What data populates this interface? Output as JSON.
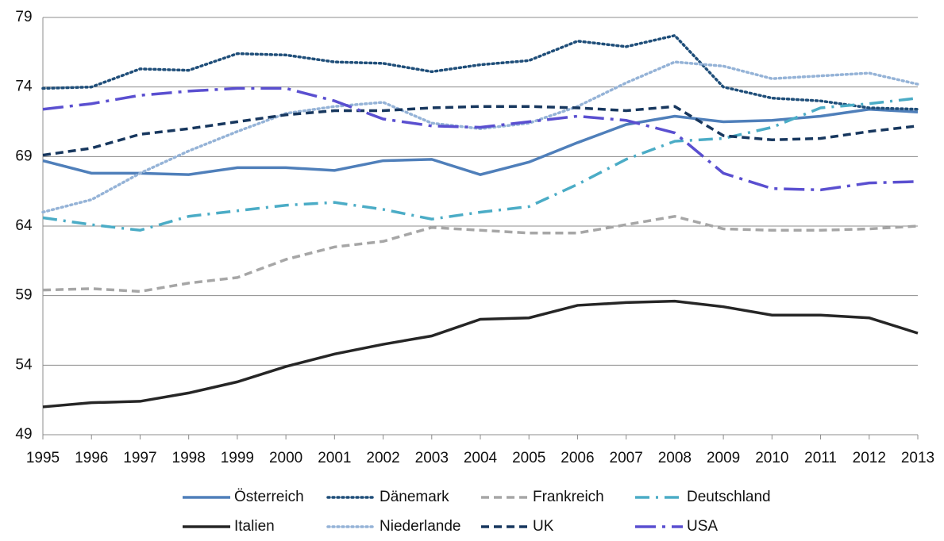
{
  "chart_data": {
    "type": "line",
    "x": [
      1995,
      1996,
      1997,
      1998,
      1999,
      2000,
      2001,
      2002,
      2003,
      2004,
      2005,
      2006,
      2007,
      2008,
      2009,
      2010,
      2011,
      2012,
      2013
    ],
    "xlim": [
      1995,
      2013
    ],
    "xticks": [
      1995,
      1996,
      1997,
      1998,
      1999,
      2000,
      2001,
      2002,
      2003,
      2004,
      2005,
      2006,
      2007,
      2008,
      2009,
      2010,
      2011,
      2012,
      2013
    ],
    "ylim": [
      49,
      79
    ],
    "yticks": [
      49,
      54,
      59,
      64,
      69,
      74,
      79
    ],
    "grid": true,
    "legend": "bottom",
    "series": [
      {
        "name": "Österreich",
        "color": "#4f7fba",
        "style": "solid",
        "values": [
          68.7,
          67.8,
          67.8,
          67.7,
          68.2,
          68.2,
          68.0,
          68.7,
          68.8,
          67.7,
          68.6,
          70.0,
          71.3,
          71.9,
          71.5,
          71.6,
          71.9,
          72.4,
          72.2
        ]
      },
      {
        "name": "Dänemark",
        "color": "#1f4e79",
        "style": "dotted",
        "values": [
          73.9,
          74.0,
          75.3,
          75.2,
          76.4,
          76.3,
          75.8,
          75.7,
          75.1,
          75.6,
          75.9,
          77.3,
          76.9,
          77.7,
          74.0,
          73.2,
          73.0,
          72.5,
          72.4
        ]
      },
      {
        "name": "Frankreich",
        "color": "#a6a6a6",
        "style": "dashed",
        "values": [
          59.4,
          59.5,
          59.3,
          59.9,
          60.3,
          61.6,
          62.5,
          62.9,
          63.9,
          63.7,
          63.5,
          63.5,
          64.1,
          64.7,
          63.8,
          63.7,
          63.7,
          63.8,
          64.0
        ]
      },
      {
        "name": "Deutschland",
        "color": "#4bacc6",
        "style": "dashdot",
        "values": [
          64.6,
          64.1,
          63.7,
          64.7,
          65.1,
          65.5,
          65.7,
          65.2,
          64.5,
          65.0,
          65.4,
          67.0,
          68.8,
          70.1,
          70.3,
          71.1,
          72.5,
          72.8,
          73.2
        ]
      },
      {
        "name": "Italien",
        "color": "#262626",
        "style": "solid",
        "values": [
          51.0,
          51.3,
          51.4,
          52.0,
          52.8,
          53.9,
          54.8,
          55.5,
          56.1,
          57.3,
          57.4,
          58.3,
          58.5,
          58.6,
          58.2,
          57.6,
          57.6,
          57.4,
          56.3
        ]
      },
      {
        "name": "Niederlande",
        "color": "#95b3d7",
        "style": "dotted",
        "values": [
          65.0,
          65.9,
          67.8,
          69.4,
          70.8,
          72.1,
          72.6,
          72.9,
          71.4,
          71.0,
          71.4,
          72.6,
          74.3,
          75.8,
          75.5,
          74.6,
          74.8,
          75.0,
          74.2
        ]
      },
      {
        "name": "UK",
        "color": "#17375e",
        "style": "dashed",
        "values": [
          69.1,
          69.6,
          70.6,
          71.0,
          71.5,
          72.0,
          72.3,
          72.3,
          72.5,
          72.6,
          72.6,
          72.5,
          72.3,
          72.6,
          70.5,
          70.2,
          70.3,
          70.8,
          71.2
        ]
      },
      {
        "name": "USA",
        "color": "#5a4fd0",
        "style": "longdashdot",
        "values": [
          72.4,
          72.8,
          73.4,
          73.7,
          73.9,
          73.9,
          73.0,
          71.7,
          71.2,
          71.1,
          71.5,
          71.9,
          71.6,
          70.7,
          67.8,
          66.7,
          66.6,
          67.1,
          67.2
        ]
      }
    ]
  }
}
